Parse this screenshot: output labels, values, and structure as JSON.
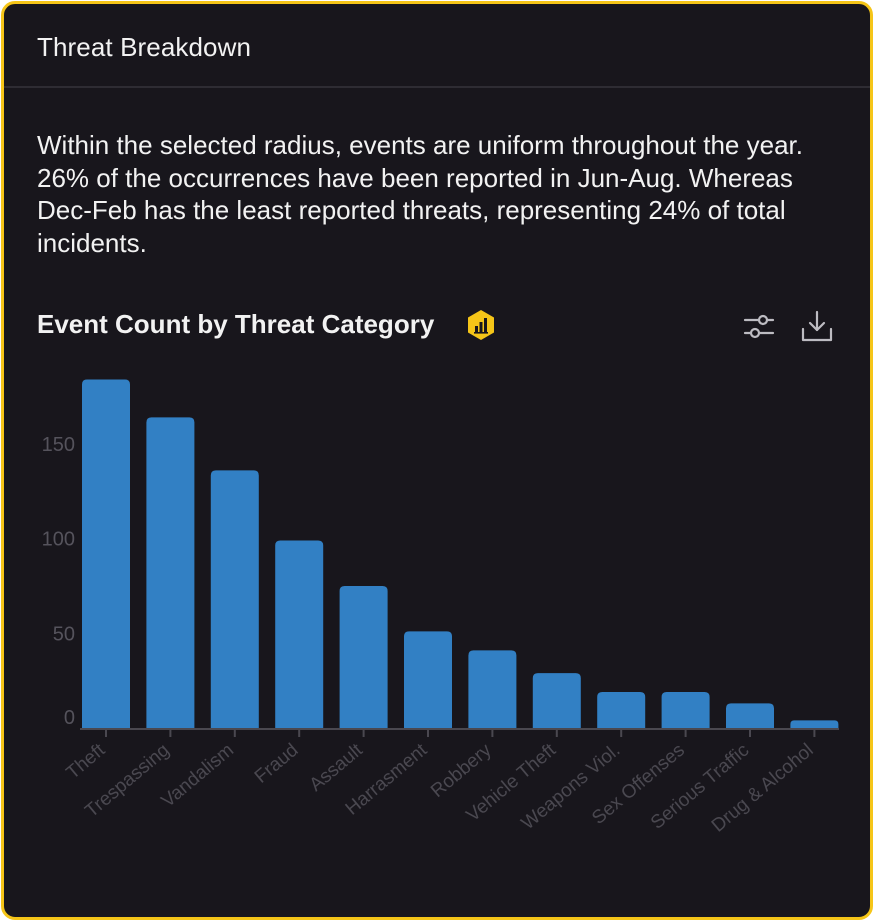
{
  "card": {
    "title": "Threat Breakdown",
    "summary": "Within the selected radius, events are uniform throughout the year. 26% of the occurrences have been reported in Jun-Aug. Whereas Dec-Feb has the least reported threats, representing 24% of total incidents."
  },
  "chart_header": {
    "title": "Event Count by Threat Category",
    "badge_icon": "bar-chart-icon",
    "settings_icon": "sliders-icon",
    "download_icon": "download-icon"
  },
  "colors": {
    "card_background": "#18161c",
    "card_border": "#f5c518",
    "bar": "#3280c4",
    "axis_text": "#55535c",
    "tick_label": "#4a4850",
    "badge": "#f5c518"
  },
  "chart_data": {
    "type": "bar",
    "title": "Event Count by Threat Category",
    "xlabel": "",
    "ylabel": "",
    "categories": [
      "Theft",
      "Trespassing",
      "Vandalism",
      "Fraud",
      "Assault",
      "Harrasment",
      "Robbery",
      "Vehicle Theft",
      "Weapons Viol.",
      "Sex Offenses",
      "Serious Traffic",
      "Drug & Alcohol"
    ],
    "values": [
      184,
      164,
      136,
      99,
      75,
      51,
      41,
      29,
      19,
      19,
      13,
      4
    ],
    "ylim": [
      0,
      190
    ],
    "yticks": [
      0,
      50,
      100,
      150
    ],
    "grid": false,
    "legend": "none"
  }
}
